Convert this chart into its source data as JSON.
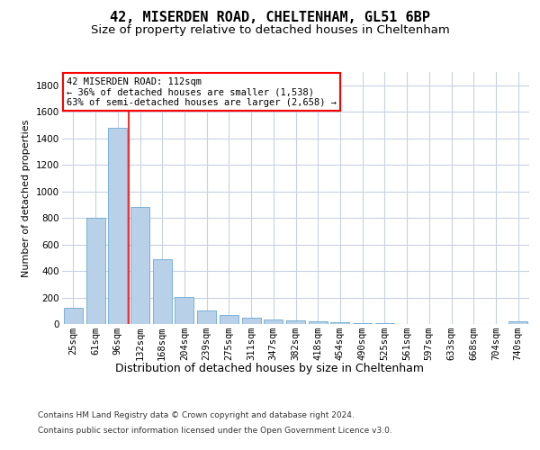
{
  "title1": "42, MISERDEN ROAD, CHELTENHAM, GL51 6BP",
  "title2": "Size of property relative to detached houses in Cheltenham",
  "xlabel": "Distribution of detached houses by size in Cheltenham",
  "ylabel": "Number of detached properties",
  "categories": [
    "25sqm",
    "61sqm",
    "96sqm",
    "132sqm",
    "168sqm",
    "204sqm",
    "239sqm",
    "275sqm",
    "311sqm",
    "347sqm",
    "382sqm",
    "418sqm",
    "454sqm",
    "490sqm",
    "525sqm",
    "561sqm",
    "597sqm",
    "633sqm",
    "668sqm",
    "704sqm",
    "740sqm"
  ],
  "values": [
    125,
    800,
    1480,
    880,
    490,
    205,
    105,
    65,
    45,
    35,
    27,
    20,
    13,
    5,
    5,
    3,
    2,
    1,
    1,
    1,
    20
  ],
  "bar_color": "#b8d0e8",
  "bar_edge_color": "#6aaad4",
  "ylim": [
    0,
    1900
  ],
  "yticks": [
    0,
    200,
    400,
    600,
    800,
    1000,
    1200,
    1400,
    1600,
    1800
  ],
  "red_line_x": 2.5,
  "annotation_text": "42 MISERDEN ROAD: 112sqm\n← 36% of detached houses are smaller (1,538)\n63% of semi-detached houses are larger (2,658) →",
  "footer1": "Contains HM Land Registry data © Crown copyright and database right 2024.",
  "footer2": "Contains public sector information licensed under the Open Government Licence v3.0.",
  "background_color": "#ffffff",
  "grid_color": "#c8d0e0",
  "title1_fontsize": 11,
  "title2_fontsize": 9.5,
  "xlabel_fontsize": 9,
  "ylabel_fontsize": 8,
  "tick_fontsize": 7.5,
  "footer_fontsize": 6.5
}
